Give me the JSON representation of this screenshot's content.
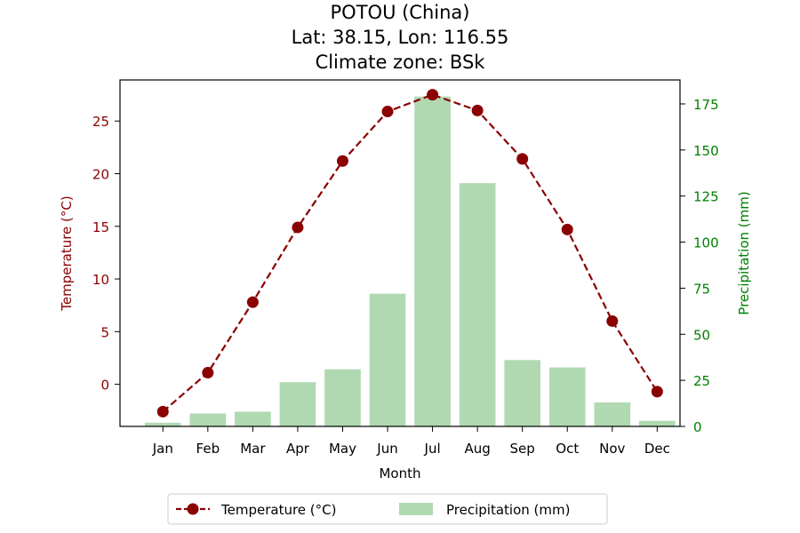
{
  "chart_data": {
    "type": "bar+line",
    "title_lines": [
      "POTOU (China)",
      "Lat: 38.15, Lon: 116.55",
      "Climate zone: BSk"
    ],
    "xlabel": "Month",
    "y_left_label": "Temperature (°C)",
    "y_right_label": "Precipitation (mm)",
    "categories": [
      "Jan",
      "Feb",
      "Mar",
      "Apr",
      "May",
      "Jun",
      "Jul",
      "Aug",
      "Sep",
      "Oct",
      "Nov",
      "Dec"
    ],
    "temperature": {
      "name": "Temperature (°C)",
      "values": [
        -2.6,
        1.1,
        7.8,
        14.9,
        21.2,
        25.9,
        27.5,
        26.0,
        21.4,
        14.7,
        6.0,
        -0.7
      ],
      "color": "#8b0000"
    },
    "precipitation": {
      "name": "Precipitation (mm)",
      "values": [
        2,
        7,
        8,
        24,
        31,
        72,
        179,
        132,
        36,
        32,
        13,
        3
      ],
      "color": "#b0d9b1"
    },
    "y_left_range": [
      -4.0,
      28.9
    ],
    "y_left_ticks": [
      0,
      5,
      10,
      15,
      20,
      25
    ],
    "y_right_range": [
      0,
      188
    ],
    "y_right_ticks": [
      0,
      25,
      50,
      75,
      100,
      125,
      150,
      175
    ],
    "legend_position": "bottom-center",
    "left_axis_color": "#8b0000",
    "right_axis_color": "#008000"
  }
}
